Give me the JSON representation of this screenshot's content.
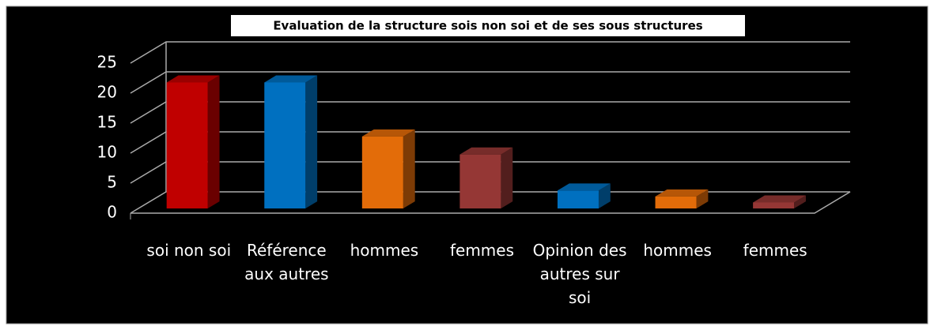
{
  "chart_data": {
    "type": "bar3d",
    "title": "Evaluation de la structure sois non soi et de ses sous structures",
    "categories": [
      "soi non soi",
      "Référence aux autres",
      "hommes",
      "femmes",
      "Opinion des autres sur soi",
      "hommes",
      "femmes"
    ],
    "values": [
      21,
      21,
      12,
      9,
      3,
      2,
      1
    ],
    "colors": [
      "#c00000",
      "#0070c0",
      "#e36c09",
      "#953735",
      "#0070c0",
      "#e36c09",
      "#953735"
    ],
    "ylim": [
      0,
      25
    ],
    "yticks": [
      0,
      5,
      10,
      15,
      20,
      25
    ],
    "grid": true
  }
}
